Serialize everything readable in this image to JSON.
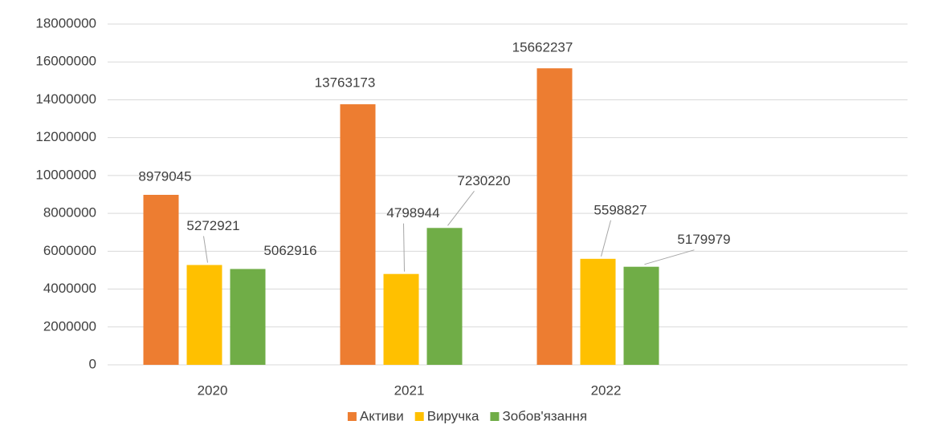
{
  "chart_data": {
    "type": "bar",
    "categories": [
      "2020",
      "2021",
      "2022",
      null
    ],
    "series": [
      {
        "name": "Активи",
        "color": "#ed7d31",
        "values": [
          8979045,
          13763173,
          15662237,
          null
        ]
      },
      {
        "name": "Виручка",
        "color": "#ffc000",
        "values": [
          5272921,
          4798944,
          5598827,
          null
        ]
      },
      {
        "name": "Зобов'язання",
        "color": "#70ad47",
        "values": [
          5062916,
          7230220,
          5179979,
          null
        ]
      }
    ],
    "ylim": [
      0,
      18000000
    ],
    "yticks": [
      0,
      2000000,
      4000000,
      6000000,
      8000000,
      10000000,
      12000000,
      14000000,
      16000000,
      18000000
    ],
    "grid": true,
    "legend": "bottom"
  }
}
